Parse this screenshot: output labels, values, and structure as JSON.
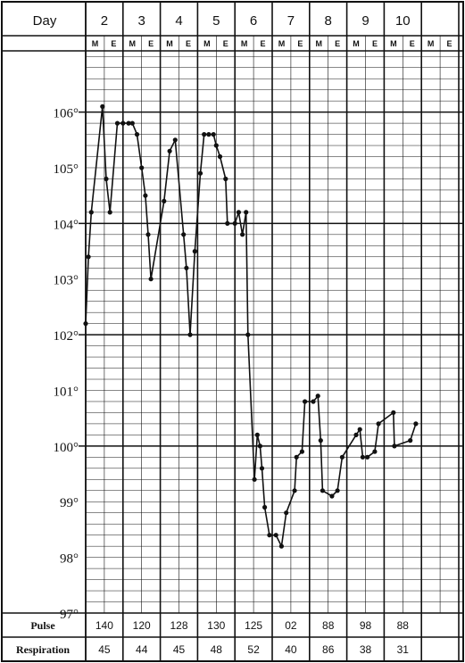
{
  "chart_data": {
    "type": "line",
    "header": {
      "day_label": "Day",
      "morning_label": "M",
      "evening_label": "E"
    },
    "days": [
      "2",
      "3",
      "4",
      "5",
      "6",
      "7",
      "8",
      "9",
      "10",
      ""
    ],
    "y_ticks": [
      "106°",
      "105°",
      "104°",
      "103°",
      "102°",
      "101°",
      "100°",
      "99°",
      "98°",
      "97°"
    ],
    "y_tick_values": [
      106,
      105,
      104,
      103,
      102,
      101,
      100,
      99,
      98,
      97
    ],
    "ylim": [
      97,
      107.1
    ],
    "grid": true,
    "series": [
      {
        "points": [
          [
            0.0,
            102.2
          ],
          [
            0.15,
            103.4
          ],
          [
            0.3,
            104.2
          ],
          [
            0.9,
            106.1
          ],
          [
            1.1,
            104.8
          ],
          [
            1.3,
            104.2
          ],
          [
            1.7,
            105.8
          ],
          [
            2.0,
            105.8
          ],
          [
            2.3,
            105.8
          ],
          [
            2.5,
            105.8
          ],
          [
            2.75,
            105.6
          ],
          [
            3.0,
            105.0
          ],
          [
            3.2,
            104.5
          ],
          [
            3.35,
            103.8
          ],
          [
            3.5,
            103.0
          ],
          [
            4.2,
            104.4
          ],
          [
            4.5,
            105.3
          ],
          [
            4.8,
            105.5
          ],
          [
            5.25,
            103.8
          ],
          [
            5.4,
            103.2
          ],
          [
            5.6,
            102.0
          ],
          [
            5.85,
            103.5
          ],
          [
            6.15,
            104.9
          ],
          [
            6.35,
            105.6
          ],
          [
            6.6,
            105.6
          ],
          [
            6.85,
            105.6
          ],
          [
            7.0,
            105.4
          ],
          [
            7.2,
            105.2
          ],
          [
            7.5,
            104.8
          ],
          [
            7.6,
            104.0
          ],
          [
            8.0,
            104.0
          ],
          [
            8.2,
            104.2
          ],
          [
            8.4,
            103.8
          ],
          [
            8.6,
            104.2
          ],
          [
            8.7,
            102.0
          ],
          [
            9.05,
            99.4
          ],
          [
            9.2,
            100.2
          ],
          [
            9.35,
            100.0
          ],
          [
            9.45,
            99.6
          ],
          [
            9.6,
            98.9
          ],
          [
            9.85,
            98.4
          ],
          [
            10.2,
            98.4
          ],
          [
            10.5,
            98.2
          ],
          [
            10.75,
            98.8
          ],
          [
            11.2,
            99.2
          ],
          [
            11.3,
            99.8
          ],
          [
            11.6,
            99.9
          ],
          [
            11.75,
            100.8
          ],
          [
            12.2,
            100.8
          ],
          [
            12.45,
            100.9
          ],
          [
            12.6,
            100.1
          ],
          [
            12.7,
            99.2
          ],
          [
            13.2,
            99.1
          ],
          [
            13.5,
            99.2
          ],
          [
            13.75,
            99.8
          ],
          [
            14.5,
            100.2
          ],
          [
            14.7,
            100.3
          ],
          [
            14.85,
            99.8
          ],
          [
            15.1,
            99.8
          ],
          [
            15.5,
            99.9
          ],
          [
            15.7,
            100.4
          ],
          [
            16.5,
            100.6
          ],
          [
            16.55,
            100.0
          ],
          [
            17.4,
            100.1
          ],
          [
            17.7,
            100.4
          ]
        ]
      }
    ]
  },
  "footer": {
    "pulse_label": "Pulse",
    "respiration_label": "Respiration",
    "pulse": [
      "140",
      "120",
      "128",
      "130",
      "125",
      "02",
      "88",
      "98",
      "88",
      ""
    ],
    "respiration": [
      "45",
      "44",
      "45",
      "48",
      "52",
      "40",
      "86",
      "38",
      "31",
      ""
    ]
  }
}
